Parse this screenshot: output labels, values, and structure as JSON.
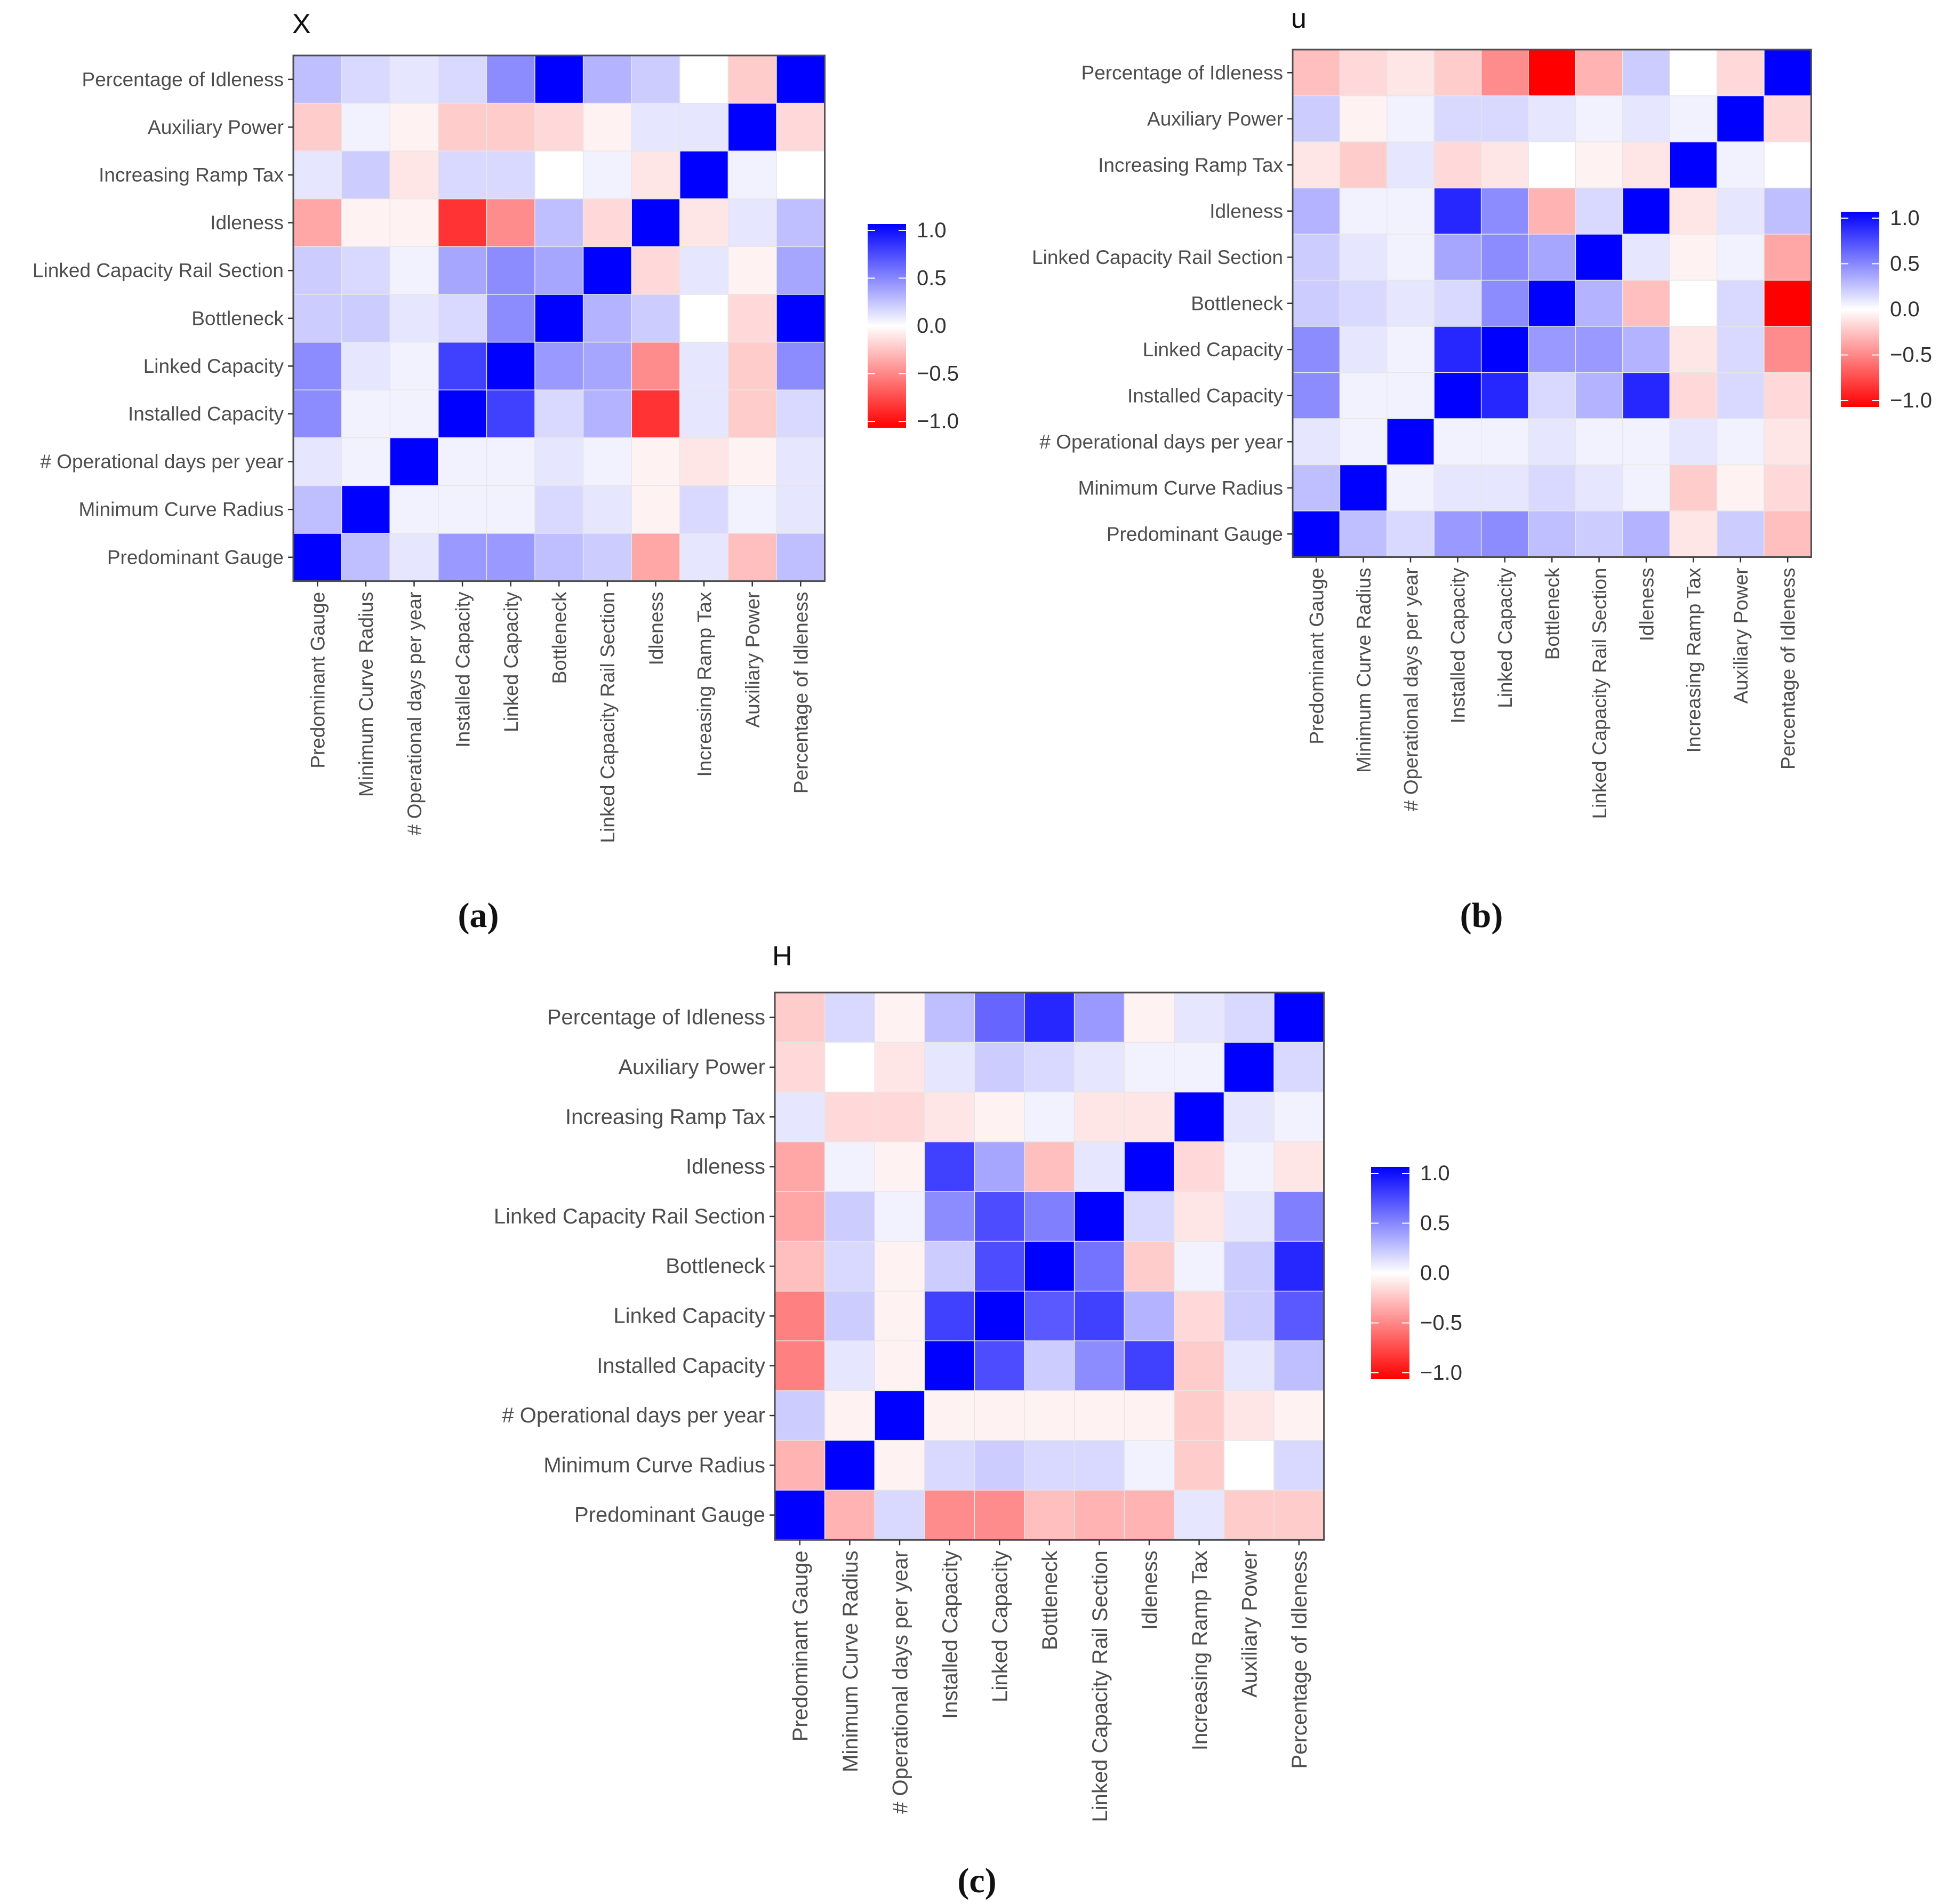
{
  "chart_data": [
    {
      "type": "heatmap",
      "title": "X",
      "panel_label": "(a)",
      "x_labels": [
        "Predominant Gauge",
        "Minimum Curve Radius",
        "# Operational days per year",
        "Installed Capacity",
        "Linked Capacity",
        "Bottleneck",
        "Linked Capacity Rail Section",
        "Idleness",
        "Increasing Ramp Tax",
        "Auxiliary Power",
        "Percentage of Idleness"
      ],
      "y_labels_top_to_bottom": [
        "Percentage of Idleness",
        "Auxiliary Power",
        "Increasing Ramp Tax",
        "Idleness",
        "Linked Capacity Rail Section",
        "Bottleneck",
        "Linked Capacity",
        "Installed Capacity",
        "# Operational days per year",
        "Minimum Curve Radius",
        "Predominant Gauge"
      ],
      "values_top_to_bottom": [
        [
          0.25,
          0.15,
          0.1,
          0.15,
          0.45,
          1.0,
          0.3,
          0.2,
          0.0,
          -0.2,
          1.0
        ],
        [
          -0.2,
          0.05,
          -0.05,
          -0.2,
          -0.2,
          -0.15,
          -0.05,
          0.1,
          0.1,
          1.0,
          -0.15
        ],
        [
          0.1,
          0.2,
          -0.1,
          0.15,
          0.15,
          0.0,
          0.05,
          -0.1,
          1.0,
          0.05,
          0.0
        ],
        [
          -0.35,
          -0.05,
          -0.05,
          -0.8,
          -0.45,
          0.25,
          -0.15,
          1.0,
          -0.1,
          0.1,
          0.25
        ],
        [
          0.2,
          0.15,
          0.05,
          0.35,
          0.45,
          0.35,
          1.0,
          -0.15,
          0.1,
          -0.05,
          0.35
        ],
        [
          0.2,
          0.2,
          0.1,
          0.15,
          0.45,
          1.0,
          0.3,
          0.2,
          0.0,
          -0.15,
          1.0
        ],
        [
          0.45,
          0.1,
          0.05,
          0.75,
          1.0,
          0.4,
          0.35,
          -0.45,
          0.1,
          -0.2,
          0.45
        ],
        [
          0.45,
          0.05,
          0.05,
          1.0,
          0.75,
          0.15,
          0.3,
          -0.8,
          0.1,
          -0.2,
          0.15
        ],
        [
          0.1,
          0.05,
          1.0,
          0.05,
          0.05,
          0.1,
          0.05,
          -0.05,
          -0.1,
          -0.05,
          0.1
        ],
        [
          0.25,
          1.0,
          0.05,
          0.05,
          0.05,
          0.15,
          0.1,
          -0.05,
          0.15,
          0.05,
          0.1
        ],
        [
          1.0,
          0.25,
          0.1,
          0.4,
          0.4,
          0.25,
          0.2,
          -0.35,
          0.1,
          -0.25,
          0.25
        ]
      ],
      "color_scale": {
        "low": "#ff0000",
        "mid": "#ffffff",
        "high": "#0000ff",
        "range": [
          -1.0,
          1.0
        ]
      },
      "legend_ticks": [
        "1.0",
        "0.5",
        "0.0",
        "−0.5",
        "−1.0"
      ]
    },
    {
      "type": "heatmap",
      "title": "u",
      "panel_label": "(b)",
      "x_labels": [
        "Predominant Gauge",
        "Minimum Curve Radius",
        "# Operational days per year",
        "Installed Capacity",
        "Linked Capacity",
        "Bottleneck",
        "Linked Capacity Rail Section",
        "Idleness",
        "Increasing Ramp Tax",
        "Auxiliary Power",
        "Percentage of Idleness"
      ],
      "y_labels_top_to_bottom": [
        "Percentage of Idleness",
        "Auxiliary Power",
        "Increasing Ramp Tax",
        "Idleness",
        "Linked Capacity Rail Section",
        "Bottleneck",
        "Linked Capacity",
        "Installed Capacity",
        "# Operational days per year",
        "Minimum Curve Radius",
        "Predominant Gauge"
      ],
      "values_top_to_bottom": [
        [
          -0.25,
          -0.15,
          -0.1,
          -0.2,
          -0.45,
          -1.0,
          -0.3,
          0.2,
          0.0,
          -0.15,
          1.0
        ],
        [
          0.2,
          -0.05,
          0.05,
          0.15,
          0.15,
          0.1,
          0.05,
          0.1,
          0.05,
          1.0,
          -0.15
        ],
        [
          -0.1,
          -0.2,
          0.1,
          -0.15,
          -0.1,
          0.0,
          -0.05,
          -0.1,
          1.0,
          0.05,
          0.0
        ],
        [
          0.3,
          0.05,
          0.05,
          0.85,
          0.45,
          -0.3,
          0.15,
          1.0,
          -0.1,
          0.1,
          0.25
        ],
        [
          0.2,
          0.1,
          0.05,
          0.35,
          0.45,
          0.35,
          1.0,
          0.1,
          -0.05,
          0.05,
          -0.35
        ],
        [
          0.2,
          0.15,
          0.1,
          0.15,
          0.45,
          1.0,
          0.3,
          -0.25,
          0.0,
          0.15,
          -1.0
        ],
        [
          0.45,
          0.1,
          0.05,
          0.85,
          1.0,
          0.4,
          0.4,
          0.3,
          -0.1,
          0.15,
          -0.45
        ],
        [
          0.45,
          0.05,
          0.05,
          1.0,
          0.85,
          0.15,
          0.3,
          0.85,
          -0.15,
          0.15,
          -0.15
        ],
        [
          0.1,
          0.05,
          1.0,
          0.05,
          0.05,
          0.1,
          0.05,
          0.05,
          0.1,
          0.05,
          -0.1
        ],
        [
          0.25,
          1.0,
          0.05,
          0.1,
          0.1,
          0.15,
          0.1,
          0.05,
          -0.2,
          -0.05,
          -0.15
        ],
        [
          1.0,
          0.25,
          0.15,
          0.4,
          0.45,
          0.25,
          0.2,
          0.3,
          -0.1,
          0.2,
          -0.25
        ]
      ],
      "color_scale": {
        "low": "#ff0000",
        "mid": "#ffffff",
        "high": "#0000ff",
        "range": [
          -1.0,
          1.0
        ]
      },
      "legend_ticks": [
        "1.0",
        "0.5",
        "0.0",
        "−0.5",
        "−1.0"
      ]
    },
    {
      "type": "heatmap",
      "title": "H",
      "panel_label": "(c)",
      "x_labels": [
        "Predominant Gauge",
        "Minimum Curve Radius",
        "# Operational days per year",
        "Installed Capacity",
        "Linked Capacity",
        "Bottleneck",
        "Linked Capacity Rail Section",
        "Idleness",
        "Increasing Ramp Tax",
        "Auxiliary Power",
        "Percentage of Idleness"
      ],
      "y_labels_top_to_bottom": [
        "Percentage of Idleness",
        "Auxiliary Power",
        "Increasing Ramp Tax",
        "Idleness",
        "Linked Capacity Rail Section",
        "Bottleneck",
        "Linked Capacity",
        "Installed Capacity",
        "# Operational days per year",
        "Minimum Curve Radius",
        "Predominant Gauge"
      ],
      "values_top_to_bottom": [
        [
          -0.2,
          0.15,
          -0.05,
          0.25,
          0.6,
          0.85,
          0.4,
          -0.05,
          0.1,
          0.15,
          1.0
        ],
        [
          -0.15,
          0.0,
          -0.1,
          0.1,
          0.2,
          0.15,
          0.1,
          0.05,
          0.05,
          1.0,
          0.15
        ],
        [
          0.1,
          -0.15,
          -0.15,
          -0.1,
          -0.05,
          0.05,
          -0.1,
          -0.1,
          1.0,
          0.1,
          0.05
        ],
        [
          -0.35,
          0.05,
          -0.05,
          0.75,
          0.35,
          -0.25,
          0.1,
          1.0,
          -0.15,
          0.05,
          -0.1
        ],
        [
          -0.35,
          0.2,
          0.05,
          0.45,
          0.7,
          0.5,
          1.0,
          0.15,
          -0.1,
          0.1,
          0.5
        ],
        [
          -0.25,
          0.15,
          -0.05,
          0.2,
          0.7,
          1.0,
          0.55,
          -0.2,
          0.05,
          0.2,
          0.85
        ],
        [
          -0.5,
          0.2,
          -0.05,
          0.75,
          1.0,
          0.65,
          0.75,
          0.3,
          -0.15,
          0.2,
          0.65
        ],
        [
          -0.5,
          0.1,
          -0.05,
          1.0,
          0.7,
          0.2,
          0.45,
          0.75,
          -0.2,
          0.1,
          0.25
        ],
        [
          0.2,
          -0.05,
          1.0,
          -0.05,
          -0.05,
          -0.05,
          -0.05,
          -0.05,
          -0.2,
          -0.1,
          -0.05
        ],
        [
          -0.3,
          1.0,
          -0.05,
          0.15,
          0.2,
          0.15,
          0.15,
          0.05,
          -0.2,
          0.0,
          0.15
        ],
        [
          1.0,
          -0.3,
          0.15,
          -0.45,
          -0.45,
          -0.25,
          -0.3,
          -0.3,
          0.1,
          -0.2,
          -0.2
        ]
      ],
      "color_scale": {
        "low": "#ff0000",
        "mid": "#ffffff",
        "high": "#0000ff",
        "range": [
          -1.0,
          1.0
        ]
      },
      "legend_ticks": [
        "1.0",
        "0.5",
        "0.0",
        "−0.5",
        "−1.0"
      ]
    }
  ]
}
